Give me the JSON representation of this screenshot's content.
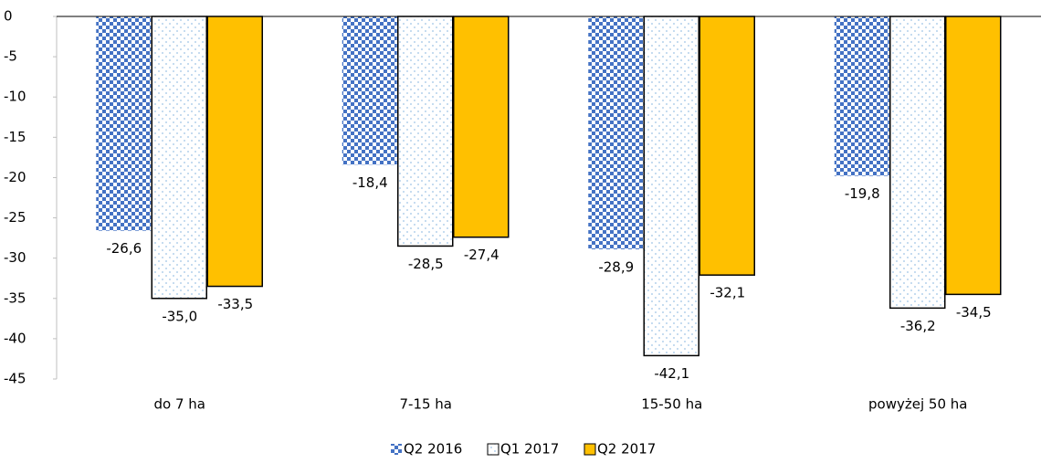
{
  "chart_data": {
    "type": "bar",
    "categories": [
      "do 7 ha",
      "7-15 ha",
      "15-50 ha",
      "powyżej 50 ha"
    ],
    "series": [
      {
        "name": "Q2 2016",
        "color": "#4472c4",
        "values": [
          -26.6,
          -18.4,
          -28.9,
          -19.8
        ],
        "value_labels": [
          "-26,6",
          "-18,4",
          "-28,9",
          "-19,8"
        ]
      },
      {
        "name": "Q1 2017",
        "color": "#9dc3e6",
        "values": [
          -35.0,
          -28.5,
          -42.1,
          -36.2
        ],
        "value_labels": [
          "-35,0",
          "-28,5",
          "-42,1",
          "-36,2"
        ]
      },
      {
        "name": "Q2 2017",
        "color": "#ffc000",
        "values": [
          -33.5,
          -27.4,
          -32.1,
          -34.5
        ],
        "value_labels": [
          "-33,5",
          "-27,4",
          "-32,1",
          "-34,5"
        ]
      }
    ],
    "ylim": [
      -45,
      0
    ],
    "yticks": [
      0,
      -5,
      -10,
      -15,
      -20,
      -25,
      -30,
      -35,
      -40,
      -45
    ],
    "grid": false
  }
}
